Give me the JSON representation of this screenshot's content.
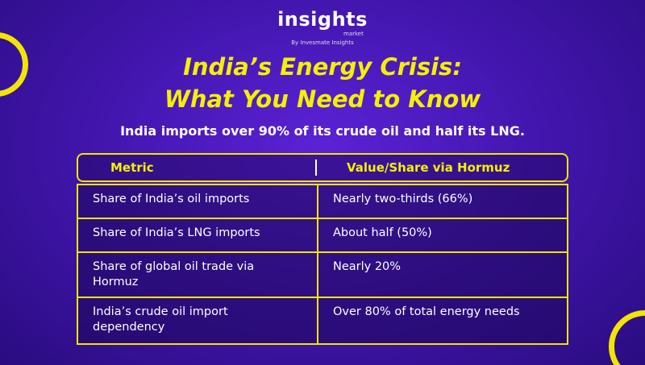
{
  "logo": {
    "name": "insights",
    "sub": "market",
    "tagline": "By Invesmate Insights"
  },
  "header": {
    "title_line1": "India’s Energy Crisis:",
    "title_line2": "What You Need to Know",
    "subtitle": "India imports over 90% of its crude oil and half its LNG."
  },
  "table": {
    "columns": [
      "Metric",
      "Value/Share via Hormuz"
    ],
    "rows": [
      [
        "Share of India’s oil imports",
        "Nearly two-thirds (66%)"
      ],
      [
        "Share of India’s LNG imports",
        "About half (50%)"
      ],
      [
        "Share of global oil trade via Hormuz",
        "Nearly 20%"
      ],
      [
        "India’s crude oil import dependency",
        "Over 80% of total energy needs"
      ]
    ]
  }
}
